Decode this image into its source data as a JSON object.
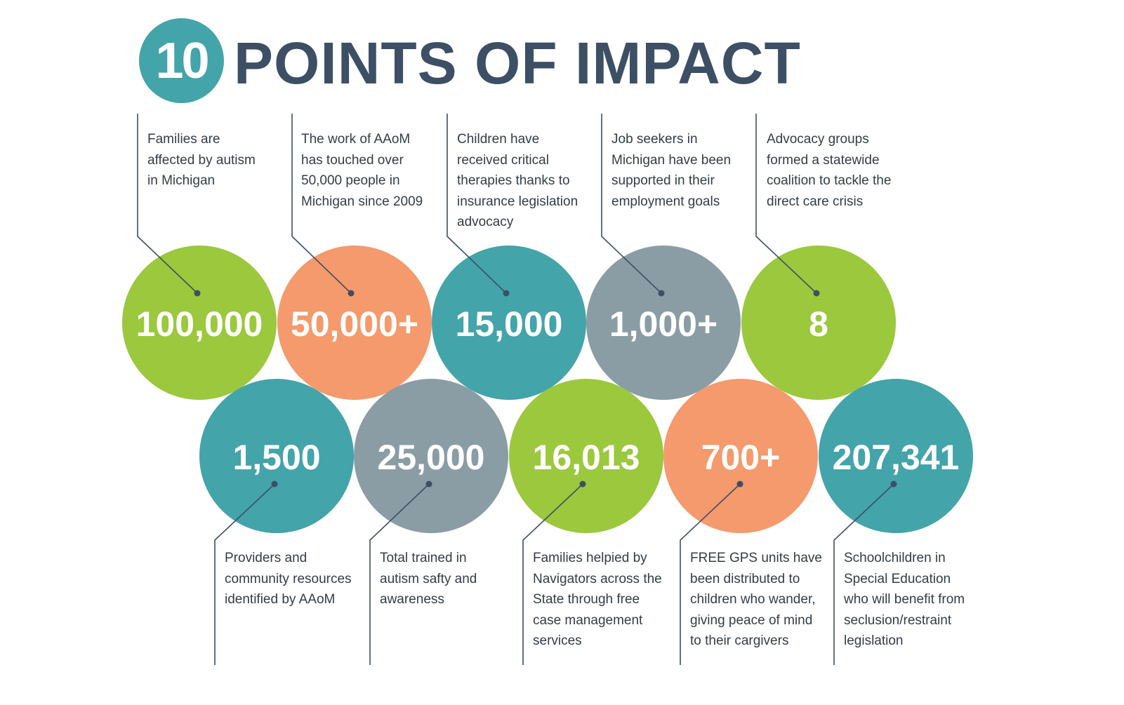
{
  "header": {
    "number": "10",
    "title": "POINTS OF IMPACT"
  },
  "points": [
    {
      "value": "100,000",
      "text": "Families are affected by autism in Michigan",
      "color": "#9bc83d"
    },
    {
      "value": "50,000+",
      "text": "The work of AAoM has touched over 50,000 people in Michigan since 2009",
      "color": "#f49a6c"
    },
    {
      "value": "15,000",
      "text": "Children have received critical therapies thanks to insurance legislation advocacy",
      "color": "#43a4aa"
    },
    {
      "value": "1,000+",
      "text": "Job seekers in Michigan have been supported in their employment goals",
      "color": "#8a9da5"
    },
    {
      "value": "8",
      "text": "Advocacy groups formed a statewide coalition to tackle the direct care crisis",
      "color": "#9bc83d"
    },
    {
      "value": "1,500",
      "text": "Providers and community resources identified by AAoM",
      "color": "#43a4aa"
    },
    {
      "value": "25,000",
      "text": "Total trained in autism safty and awareness",
      "color": "#8a9da5"
    },
    {
      "value": "16,013",
      "text": "Families helpied by Navigators across the State through free case management services",
      "color": "#9bc83d"
    },
    {
      "value": "700+",
      "text": "FREE GPS units have been distributed to children who wander, giving peace of mind to their cargivers",
      "color": "#f49a6c"
    },
    {
      "value": "207,341",
      "text": "Schoolchildren in Special Education who will benefit from seclusion/restraint legislation",
      "color": "#43a4aa"
    }
  ]
}
